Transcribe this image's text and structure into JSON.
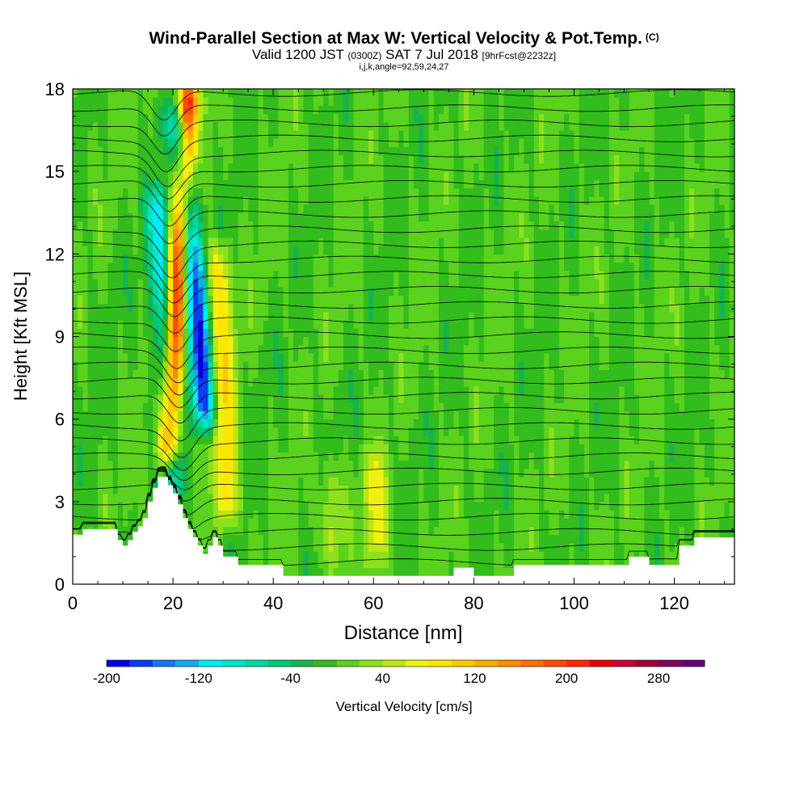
{
  "title": {
    "main": "Wind-Parallel Section at Max W: Vertical Velocity & Pot.Temp.",
    "copyright": "(C)",
    "valid_prefix": "Valid 1200 JST",
    "valid_utc": "(0300Z)",
    "valid_date": "SAT 7 Jul 2018",
    "forecast": "[9hrFcst@2232z]",
    "params": "i,j,k,angle=92,59,24,27"
  },
  "colors": {
    "scale": [
      "#0000e6",
      "#0a3cf0",
      "#1478f5",
      "#14aaf5",
      "#00ebf5",
      "#00e6c8",
      "#00d7a0",
      "#00c878",
      "#14b450",
      "#32bc1e",
      "#5ad21e",
      "#8ce11e",
      "#bee614",
      "#f0f014",
      "#ffe600",
      "#ffc800",
      "#ffaa00",
      "#ff8c00",
      "#ff6e00",
      "#ff4b00",
      "#ff2800",
      "#e60000",
      "#c8003c",
      "#a0003c",
      "#82005a",
      "#640078"
    ],
    "contour": "#000000",
    "terrain": "#ffffff"
  },
  "chart_data": {
    "type": "heatmap",
    "xlabel": "Distance [nm]",
    "ylabel": "Height [Kft MSL]",
    "xlim": [
      0,
      132
    ],
    "ylim": [
      0,
      18
    ],
    "xticks": [
      0,
      20,
      40,
      60,
      80,
      100,
      120
    ],
    "yticks": [
      0,
      3,
      6,
      9,
      12,
      15,
      18
    ],
    "colorbar": {
      "label": "Vertical Velocity [cm/s]",
      "min": -200,
      "max": 320,
      "step": 20,
      "tick_labels": [
        "-200",
        "-120",
        "-40",
        "40",
        "120",
        "200",
        "280"
      ],
      "tick_values": [
        -200,
        -120,
        -40,
        40,
        120,
        200,
        280
      ]
    },
    "features": [
      {
        "type": "updraft",
        "x_bottom": 19,
        "x_top": 23,
        "y_bottom": 4.5,
        "y_top": 18,
        "max_w": 240
      },
      {
        "type": "downdraft",
        "x_bottom": 26.5,
        "x_top": 21,
        "y_bottom": 6,
        "y_top": 17,
        "min_w": -180
      },
      {
        "type": "downdraft",
        "x_bottom": 20,
        "x_top": 17,
        "y_bottom": 3.5,
        "y_top": 14,
        "min_w": -120
      },
      {
        "type": "updraft",
        "x_bottom": 31,
        "x_top": 29,
        "y_bottom": 2.5,
        "y_top": 12,
        "max_w": 100
      },
      {
        "type": "updraft",
        "x_bottom": 61,
        "x_top": 60,
        "y_bottom": 1,
        "y_top": 4.5,
        "max_w": 70
      },
      {
        "type": "updraft",
        "x_bottom": 52,
        "x_top": 52,
        "y_bottom": 1,
        "y_top": 4,
        "max_w": 50
      }
    ],
    "terrain_profile": [
      [
        0,
        1.8
      ],
      [
        2,
        1.8
      ],
      [
        2,
        2.0
      ],
      [
        9,
        2.0
      ],
      [
        9,
        1.6
      ],
      [
        10,
        1.6
      ],
      [
        10,
        1.4
      ],
      [
        11,
        1.4
      ],
      [
        11,
        1.6
      ],
      [
        12,
        1.6
      ],
      [
        12,
        1.9
      ],
      [
        13,
        1.9
      ],
      [
        13,
        2.1
      ],
      [
        14,
        2.1
      ],
      [
        14,
        2.4
      ],
      [
        15,
        2.4
      ],
      [
        15,
        3.0
      ],
      [
        16,
        3.0
      ],
      [
        16,
        3.5
      ],
      [
        17,
        3.5
      ],
      [
        17,
        3.9
      ],
      [
        19,
        3.9
      ],
      [
        19,
        3.6
      ],
      [
        20,
        3.6
      ],
      [
        20,
        3.3
      ],
      [
        21,
        3.3
      ],
      [
        21,
        2.9
      ],
      [
        22,
        2.9
      ],
      [
        22,
        2.4
      ],
      [
        23,
        2.4
      ],
      [
        23,
        2.0
      ],
      [
        24,
        2.0
      ],
      [
        24,
        1.7
      ],
      [
        25,
        1.7
      ],
      [
        25,
        1.4
      ],
      [
        26,
        1.4
      ],
      [
        26,
        1.1
      ],
      [
        27,
        1.1
      ],
      [
        27,
        1.4
      ],
      [
        28,
        1.4
      ],
      [
        28,
        1.7
      ],
      [
        29,
        1.7
      ],
      [
        29,
        1.4
      ],
      [
        30,
        1.4
      ],
      [
        30,
        1.0
      ],
      [
        33,
        1.0
      ],
      [
        33,
        0.7
      ],
      [
        42,
        0.7
      ],
      [
        42,
        0.3
      ],
      [
        76,
        0.3
      ],
      [
        76,
        0.6
      ],
      [
        80,
        0.6
      ],
      [
        80,
        0.3
      ],
      [
        88,
        0.3
      ],
      [
        88,
        0.7
      ],
      [
        111,
        0.7
      ],
      [
        111,
        1.0
      ],
      [
        115,
        1.0
      ],
      [
        115,
        0.7
      ],
      [
        121,
        0.7
      ],
      [
        121,
        1.4
      ],
      [
        124,
        1.4
      ],
      [
        124,
        1.7
      ],
      [
        132,
        1.7
      ]
    ],
    "isentropes_note": "potential temperature contours, 1 K interval"
  }
}
